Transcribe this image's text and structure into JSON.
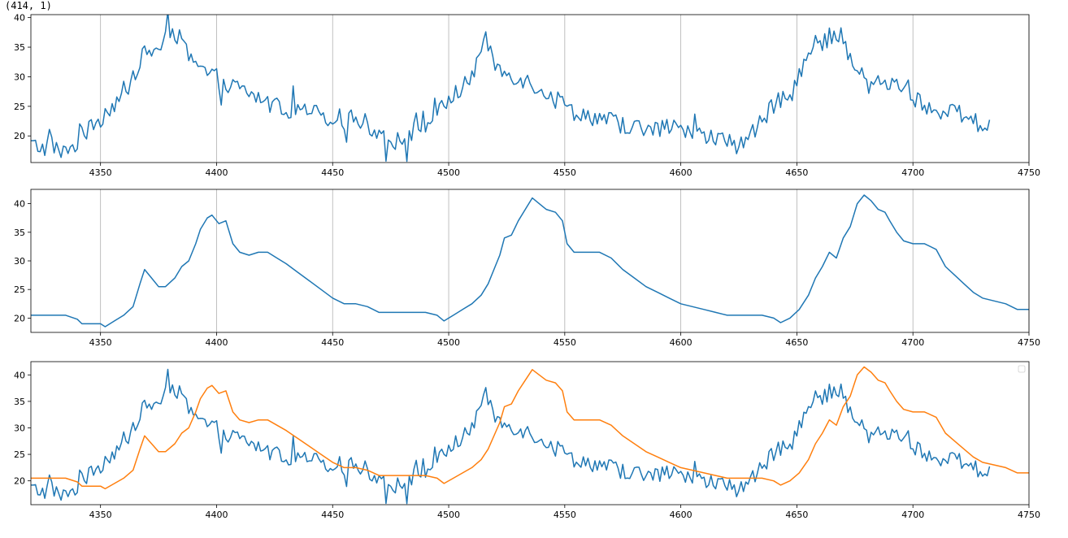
{
  "output_text": "(414, 1)",
  "chart_data": [
    {
      "type": "line",
      "xlim": [
        4320,
        4750
      ],
      "ylim": [
        15.5,
        40.5
      ],
      "x_ticks": [
        4350,
        4400,
        4450,
        4500,
        4550,
        4600,
        4650,
        4700,
        4750
      ],
      "y_ticks": [
        20,
        25,
        30,
        35,
        40
      ],
      "grid": "vertical",
      "series": [
        {
          "color": "#1f77b4",
          "points": [
            [
              4320,
              18.5
            ],
            [
              4325,
              18
            ],
            [
              4330,
              18.5
            ],
            [
              4334,
              17
            ],
            [
              4338,
              18
            ],
            [
              4341,
              19.5
            ],
            [
              4344,
              20.5
            ],
            [
              4348,
              22
            ],
            [
              4352,
              24
            ],
            [
              4355,
              25
            ],
            [
              4358,
              26.5
            ],
            [
              4361,
              27
            ],
            [
              4364,
              30
            ],
            [
              4367,
              33
            ],
            [
              4370,
              34
            ],
            [
              4374,
              34.5
            ],
            [
              4377,
              36
            ],
            [
              4380,
              38
            ],
            [
              4383,
              37
            ],
            [
              4386,
              35
            ],
            [
              4390,
              32
            ],
            [
              4394,
              31
            ],
            [
              4398,
              30
            ],
            [
              4402,
              29.5
            ],
            [
              4406,
              28.5
            ],
            [
              4410,
              28
            ],
            [
              4415,
              27
            ],
            [
              4420,
              26
            ],
            [
              4425,
              25
            ],
            [
              4430,
              24.5
            ],
            [
              4435,
              24
            ],
            [
              4440,
              24
            ],
            [
              4445,
              23.5
            ],
            [
              4450,
              23
            ],
            [
              4455,
              23
            ],
            [
              4460,
              23
            ],
            [
              4465,
              22
            ],
            [
              4470,
              20.5
            ],
            [
              4475,
              19.5
            ],
            [
              4478,
              19
            ],
            [
              4482,
              20
            ],
            [
              4486,
              21
            ],
            [
              4490,
              22
            ],
            [
              4494,
              23
            ],
            [
              4498,
              25
            ],
            [
              4502,
              27
            ],
            [
              4506,
              28
            ],
            [
              4510,
              30
            ],
            [
              4513,
              34
            ],
            [
              4516,
              36
            ],
            [
              4519,
              33
            ],
            [
              4522,
              31
            ],
            [
              4526,
              30.5
            ],
            [
              4530,
              30
            ],
            [
              4535,
              29
            ],
            [
              4540,
              28
            ],
            [
              4545,
              26.5
            ],
            [
              4550,
              25
            ],
            [
              4555,
              24
            ],
            [
              4560,
              23.5
            ],
            [
              4565,
              23
            ],
            [
              4570,
              22.5
            ],
            [
              4575,
              22
            ],
            [
              4580,
              21.5
            ],
            [
              4585,
              21
            ],
            [
              4590,
              21
            ],
            [
              4595,
              21.5
            ],
            [
              4600,
              21
            ],
            [
              4605,
              20.5
            ],
            [
              4610,
              20
            ],
            [
              4615,
              19.5
            ],
            [
              4620,
              19
            ],
            [
              4625,
              18.5
            ],
            [
              4628,
              19
            ],
            [
              4632,
              21
            ],
            [
              4636,
              23
            ],
            [
              4640,
              25
            ],
            [
              4645,
              27
            ],
            [
              4650,
              30
            ],
            [
              4654,
              33
            ],
            [
              4658,
              35
            ],
            [
              4662,
              36
            ],
            [
              4665,
              37
            ],
            [
              4668,
              37.5
            ],
            [
              4671,
              35
            ],
            [
              4674,
              32
            ],
            [
              4678,
              30
            ],
            [
              4682,
              29.5
            ],
            [
              4686,
              29
            ],
            [
              4690,
              29
            ],
            [
              4694,
              28.5
            ],
            [
              4698,
              28
            ],
            [
              4702,
              26
            ],
            [
              4706,
              25
            ],
            [
              4710,
              24.5
            ],
            [
              4715,
              24
            ],
            [
              4720,
              23.5
            ],
            [
              4725,
              22.5
            ],
            [
              4729,
              22
            ],
            [
              4733,
              21.8
            ]
          ],
          "noise": 1.6
        }
      ]
    },
    {
      "type": "line",
      "xlim": [
        4320,
        4750
      ],
      "ylim": [
        17.5,
        42.5
      ],
      "x_ticks": [
        4350,
        4400,
        4450,
        4500,
        4550,
        4600,
        4650,
        4700,
        4750
      ],
      "y_ticks": [
        20,
        25,
        30,
        35,
        40
      ],
      "grid": "vertical",
      "series": [
        {
          "color": "#1f77b4",
          "points": [
            [
              4320,
              20.5
            ],
            [
              4335,
              20.5
            ],
            [
              4340,
              19.8
            ],
            [
              4342,
              19
            ],
            [
              4350,
              19
            ],
            [
              4352,
              18.5
            ],
            [
              4356,
              19.5
            ],
            [
              4360,
              20.5
            ],
            [
              4364,
              22
            ],
            [
              4367,
              26
            ],
            [
              4369,
              28.5
            ],
            [
              4372,
              27
            ],
            [
              4375,
              25.5
            ],
            [
              4378,
              25.5
            ],
            [
              4382,
              27
            ],
            [
              4385,
              29
            ],
            [
              4388,
              30
            ],
            [
              4391,
              33
            ],
            [
              4393,
              35.5
            ],
            [
              4396,
              37.5
            ],
            [
              4398,
              38
            ],
            [
              4401,
              36.5
            ],
            [
              4404,
              37
            ],
            [
              4407,
              33
            ],
            [
              4410,
              31.5
            ],
            [
              4414,
              31
            ],
            [
              4418,
              31.5
            ],
            [
              4422,
              31.5
            ],
            [
              4426,
              30.5
            ],
            [
              4430,
              29.5
            ],
            [
              4435,
              28
            ],
            [
              4440,
              26.5
            ],
            [
              4445,
              25
            ],
            [
              4450,
              23.5
            ],
            [
              4455,
              22.5
            ],
            [
              4460,
              22.5
            ],
            [
              4465,
              22
            ],
            [
              4470,
              21
            ],
            [
              4480,
              21
            ],
            [
              4490,
              21
            ],
            [
              4495,
              20.5
            ],
            [
              4498,
              19.5
            ],
            [
              4502,
              20.5
            ],
            [
              4506,
              21.5
            ],
            [
              4510,
              22.5
            ],
            [
              4514,
              24
            ],
            [
              4517,
              26
            ],
            [
              4520,
              29
            ],
            [
              4522,
              31
            ],
            [
              4524,
              34
            ],
            [
              4527,
              34.5
            ],
            [
              4530,
              37
            ],
            [
              4533,
              39
            ],
            [
              4536,
              41
            ],
            [
              4539,
              40
            ],
            [
              4542,
              39
            ],
            [
              4546,
              38.5
            ],
            [
              4549,
              37
            ],
            [
              4551,
              33
            ],
            [
              4554,
              31.5
            ],
            [
              4560,
              31.5
            ],
            [
              4565,
              31.5
            ],
            [
              4570,
              30.5
            ],
            [
              4575,
              28.5
            ],
            [
              4580,
              27
            ],
            [
              4585,
              25.5
            ],
            [
              4590,
              24.5
            ],
            [
              4595,
              23.5
            ],
            [
              4600,
              22.5
            ],
            [
              4605,
              22
            ],
            [
              4610,
              21.5
            ],
            [
              4615,
              21
            ],
            [
              4620,
              20.5
            ],
            [
              4625,
              20.5
            ],
            [
              4630,
              20.5
            ],
            [
              4635,
              20.5
            ],
            [
              4640,
              20
            ],
            [
              4643,
              19.2
            ],
            [
              4647,
              20
            ],
            [
              4651,
              21.5
            ],
            [
              4655,
              24
            ],
            [
              4658,
              27
            ],
            [
              4661,
              29
            ],
            [
              4664,
              31.5
            ],
            [
              4667,
              30.5
            ],
            [
              4670,
              34
            ],
            [
              4673,
              36
            ],
            [
              4676,
              40
            ],
            [
              4679,
              41.5
            ],
            [
              4682,
              40.5
            ],
            [
              4685,
              39
            ],
            [
              4688,
              38.5
            ],
            [
              4690,
              37
            ],
            [
              4693,
              35
            ],
            [
              4696,
              33.5
            ],
            [
              4700,
              33
            ],
            [
              4705,
              33
            ],
            [
              4710,
              32
            ],
            [
              4714,
              29
            ],
            [
              4718,
              27.5
            ],
            [
              4722,
              26
            ],
            [
              4726,
              24.5
            ],
            [
              4730,
              23.5
            ],
            [
              4735,
              23
            ],
            [
              4740,
              22.5
            ],
            [
              4745,
              21.5
            ],
            [
              4750,
              21.5
            ]
          ],
          "noise": 0
        }
      ]
    },
    {
      "type": "line",
      "xlim": [
        4320,
        4750
      ],
      "ylim": [
        15.5,
        42.5
      ],
      "x_ticks": [
        4350,
        4400,
        4450,
        4500,
        4550,
        4600,
        4650,
        4700,
        4750
      ],
      "y_ticks": [
        20,
        25,
        30,
        35,
        40
      ],
      "grid": "none",
      "legend": "top-right (empty)",
      "series_refs": [
        {
          "source": 0,
          "color": "#1f77b4"
        },
        {
          "source": 1,
          "color": "#ff7f0e"
        }
      ]
    }
  ]
}
